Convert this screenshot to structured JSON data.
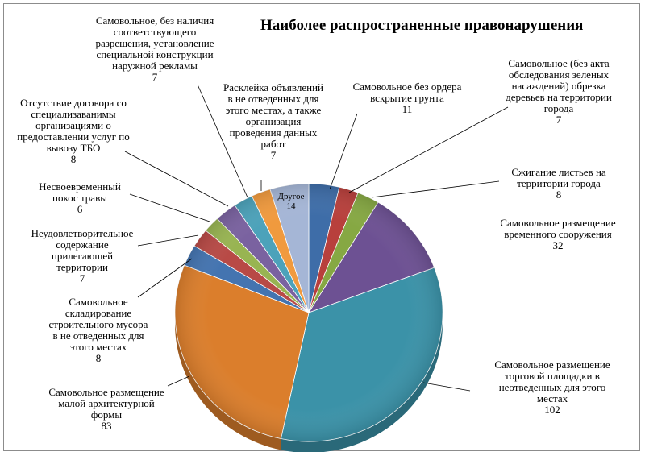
{
  "chart_data": {
    "type": "pie",
    "title": "Наиболее распространенные правонарушения",
    "slices": [
      {
        "label": "Самовольное без ордера вскрытие грунта",
        "value": 11,
        "color": "#3E6DA8"
      },
      {
        "label": "Самовольное (без акта обследования зеленых насаждений) обрезка деревьев на территории города",
        "value": 7,
        "color": "#B8403C"
      },
      {
        "label": "Сжигание листьев на территории города",
        "value": 8,
        "color": "#86A843"
      },
      {
        "label": "Самовольное размещение временного сооружения",
        "value": 32,
        "color": "#6D5193"
      },
      {
        "label": "Самовольное размещение торговой площадки в неотведенных для этого местах",
        "value": 102,
        "color": "#3B92A8"
      },
      {
        "label": "Самовольное размещение малой архитектурной формы",
        "value": 83,
        "color": "#DB7E2C"
      },
      {
        "label": "Самовольное складирование строительного мусора в не отведенных для этого местах",
        "value": 8,
        "color": "#4474B0"
      },
      {
        "label": "Неудовлетворительное содержание прилегающей территории",
        "value": 7,
        "color": "#B84A46"
      },
      {
        "label": "Несвоевременный покос травы",
        "value": 6,
        "color": "#98B452"
      },
      {
        "label": "Отсутствие договора со специализаванимы организациями о предоставлении услуг по вывозу ТБО",
        "value": 8,
        "color": "#7A62A0"
      },
      {
        "label": "Самовольное, без наличия соответствующего разрешения, установление специальной конструкции наружной рекламы",
        "value": 7,
        "color": "#4CA2BA"
      },
      {
        "label": "Расклейка объявлений в не отведенных для этого местах, а также организация проведения данных работ",
        "value": 7,
        "color": "#F09A3E"
      },
      {
        "label": "Другое",
        "value": 14,
        "color": "#A5B6D6"
      }
    ]
  }
}
